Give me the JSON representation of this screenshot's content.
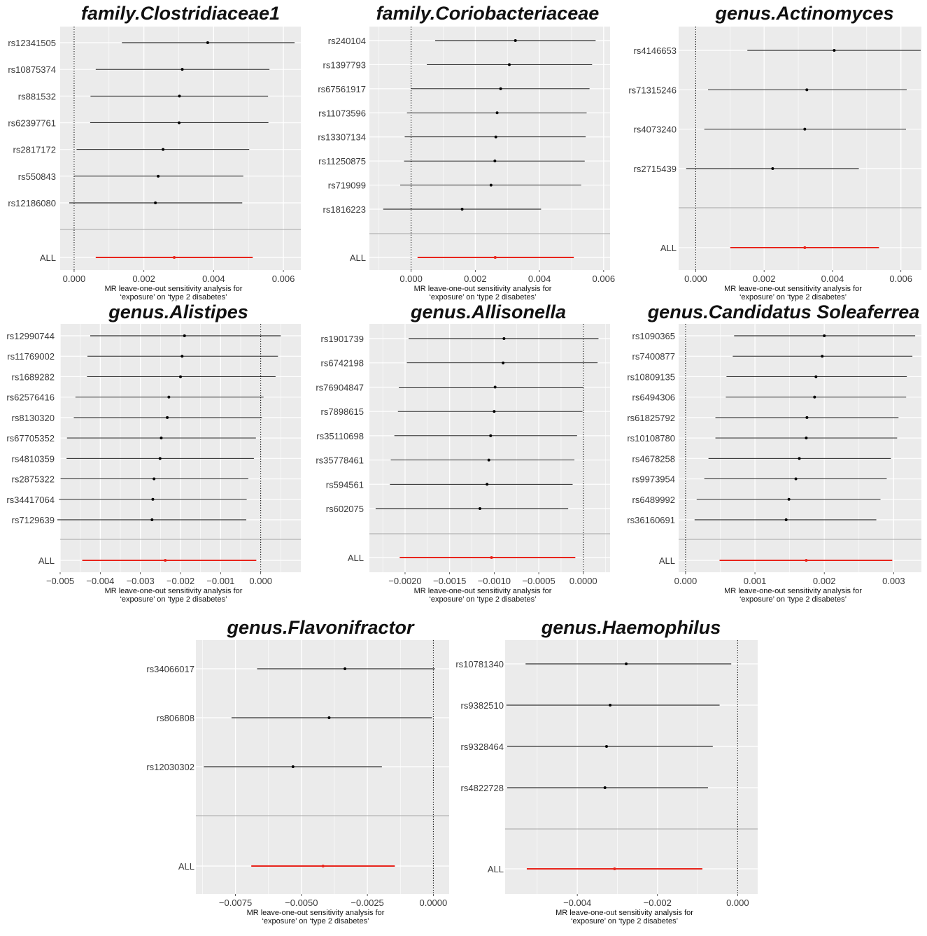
{
  "figure": {
    "colors": {
      "panel_background": "#ebebeb",
      "grid": "#ffffff",
      "estimate": "#000000",
      "overall": "#e8251c",
      "separator": "#a6a6a6",
      "null_line": "#000000"
    },
    "xlabel_line1": "MR leave-one-out sensitivity analysis for",
    "xlabel_line2": "‘exposure’ on  ‘type 2 disabetes’"
  },
  "chart_data": [
    {
      "type": "forest",
      "title": "family.Clostridiaceae1",
      "xlim": [
        -0.0004,
        0.0065
      ],
      "xticks": [
        0,
        0.002,
        0.004,
        0.006
      ],
      "xtick_labels": [
        "0.000",
        "0.002",
        "0.004",
        "0.006"
      ],
      "snps": [
        {
          "label": "rs12341505",
          "estimate": 0.00383,
          "lower": 0.00137,
          "upper": 0.00632
        },
        {
          "label": "rs10875374",
          "estimate": 0.0031,
          "lower": 0.00062,
          "upper": 0.0056
        },
        {
          "label": "rs881532",
          "estimate": 0.00302,
          "lower": 0.00047,
          "upper": 0.00556
        },
        {
          "label": "rs62397761",
          "estimate": 0.00301,
          "lower": 0.00046,
          "upper": 0.00557
        },
        {
          "label": "rs2817172",
          "estimate": 0.00255,
          "lower": 7e-05,
          "upper": 0.00502
        },
        {
          "label": "rs550843",
          "estimate": 0.00241,
          "lower": -1e-05,
          "upper": 0.00485
        },
        {
          "label": "rs12186080",
          "estimate": 0.00233,
          "lower": -0.00014,
          "upper": 0.00482
        }
      ],
      "overall": {
        "label": "ALL",
        "estimate": 0.00287,
        "lower": 0.00062,
        "upper": 0.00512
      }
    },
    {
      "type": "forest",
      "title": "family.Coriobacteriaceae",
      "xlim": [
        -0.0013,
        0.0062
      ],
      "xticks": [
        0,
        0.002,
        0.004,
        0.006
      ],
      "xtick_labels": [
        "0.000",
        "0.002",
        "0.004",
        "0.006"
      ],
      "snps": [
        {
          "label": "rs240104",
          "estimate": 0.00325,
          "lower": 0.00075,
          "upper": 0.00575
        },
        {
          "label": "rs1397793",
          "estimate": 0.00306,
          "lower": 0.00049,
          "upper": 0.00564
        },
        {
          "label": "rs67561917",
          "estimate": 0.00279,
          "lower": 0.0,
          "upper": 0.00556
        },
        {
          "label": "rs11073596",
          "estimate": 0.00268,
          "lower": -0.00013,
          "upper": 0.00547
        },
        {
          "label": "rs13307134",
          "estimate": 0.00264,
          "lower": -0.0002,
          "upper": 0.00544
        },
        {
          "label": "rs11250875",
          "estimate": 0.00261,
          "lower": -0.00022,
          "upper": 0.00541
        },
        {
          "label": "rs719099",
          "estimate": 0.00249,
          "lower": -0.00034,
          "upper": 0.0053
        },
        {
          "label": "rs1816223",
          "estimate": 0.00159,
          "lower": -0.00087,
          "upper": 0.00405
        }
      ],
      "overall": {
        "label": "ALL",
        "estimate": 0.00262,
        "lower": 0.0002,
        "upper": 0.00507
      }
    },
    {
      "type": "forest",
      "title": "genus.Actinomyces",
      "xlim": [
        -0.0005,
        0.0066
      ],
      "xticks": [
        0,
        0.002,
        0.004,
        0.006
      ],
      "xtick_labels": [
        "0.000",
        "0.002",
        "0.004",
        "0.006"
      ],
      "snps": [
        {
          "label": "rs4146653",
          "estimate": 0.00405,
          "lower": 0.00151,
          "upper": 0.00658
        },
        {
          "label": "rs71315246",
          "estimate": 0.00325,
          "lower": 0.00036,
          "upper": 0.00617
        },
        {
          "label": "rs4073240",
          "estimate": 0.00319,
          "lower": 0.00025,
          "upper": 0.00615
        },
        {
          "label": "rs2715439",
          "estimate": 0.00225,
          "lower": -0.00028,
          "upper": 0.00477
        }
      ],
      "overall": {
        "label": "ALL",
        "estimate": 0.00319,
        "lower": 0.00101,
        "upper": 0.00536
      }
    },
    {
      "type": "forest",
      "title": "genus.Alistipes",
      "xlim": [
        -0.005,
        0.001
      ],
      "xticks": [
        -0.005,
        -0.004,
        -0.003,
        -0.002,
        -0.001,
        0
      ],
      "xtick_labels": [
        "−0.005",
        "−0.004",
        "−0.003",
        "−0.002",
        "−0.001",
        "0.000"
      ],
      "snps": [
        {
          "label": "rs12990744",
          "estimate": -0.0019,
          "lower": -0.00425,
          "upper": 0.0005
        },
        {
          "label": "rs11769002",
          "estimate": -0.00196,
          "lower": -0.00432,
          "upper": 0.00043
        },
        {
          "label": "rs1689282",
          "estimate": -0.002,
          "lower": -0.00433,
          "upper": 0.00037
        },
        {
          "label": "rs62576416",
          "estimate": -0.00229,
          "lower": -0.00462,
          "upper": 7e-05
        },
        {
          "label": "rs8130320",
          "estimate": -0.00233,
          "lower": -0.00466,
          "upper": 3e-05
        },
        {
          "label": "rs67705352",
          "estimate": -0.00248,
          "lower": -0.00483,
          "upper": -0.00012
        },
        {
          "label": "rs4810359",
          "estimate": -0.00251,
          "lower": -0.00484,
          "upper": -0.00017
        },
        {
          "label": "rs2875322",
          "estimate": -0.00266,
          "lower": -0.00499,
          "upper": -0.00031
        },
        {
          "label": "rs34417064",
          "estimate": -0.00269,
          "lower": -0.00503,
          "upper": -0.00035
        },
        {
          "label": "rs7129639",
          "estimate": -0.00271,
          "lower": -0.00507,
          "upper": -0.00036
        }
      ],
      "overall": {
        "label": "ALL",
        "estimate": -0.00238,
        "lower": -0.00445,
        "upper": -0.00011
      }
    },
    {
      "type": "forest",
      "title": "genus.Allisonella",
      "xlim": [
        -0.0024,
        0.0003
      ],
      "xticks": [
        -0.002,
        -0.0015,
        -0.001,
        -0.0005,
        0
      ],
      "xtick_labels": [
        "−0.0020",
        "−0.0015",
        "−0.0010",
        "−0.0005",
        "0.0000"
      ],
      "snps": [
        {
          "label": "rs1901739",
          "estimate": -0.00089,
          "lower": -0.00196,
          "upper": 0.00017
        },
        {
          "label": "rs6742198",
          "estimate": -0.0009,
          "lower": -0.00198,
          "upper": 0.00016
        },
        {
          "label": "rs76904847",
          "estimate": -0.00099,
          "lower": -0.00207,
          "upper": 0.0
        },
        {
          "label": "rs7898615",
          "estimate": -0.001,
          "lower": -0.00208,
          "upper": -1e-05
        },
        {
          "label": "rs35110698",
          "estimate": -0.00104,
          "lower": -0.00212,
          "upper": -7e-05
        },
        {
          "label": "rs35778461",
          "estimate": -0.00106,
          "lower": -0.00216,
          "upper": -0.0001
        },
        {
          "label": "rs594561",
          "estimate": -0.00108,
          "lower": -0.00217,
          "upper": -0.00012
        },
        {
          "label": "rs602075",
          "estimate": -0.00116,
          "lower": -0.00233,
          "upper": -0.00017
        }
      ],
      "overall": {
        "label": "ALL",
        "estimate": -0.00103,
        "lower": -0.00206,
        "upper": -9e-05
      }
    },
    {
      "type": "forest",
      "title": "genus.Candidatus Soleaferrea",
      "xlim": [
        -0.0001,
        0.0034
      ],
      "xticks": [
        0,
        0.001,
        0.002,
        0.003
      ],
      "xtick_labels": [
        "0.000",
        "0.001",
        "0.002",
        "0.003"
      ],
      "snps": [
        {
          "label": "rs1090365",
          "estimate": 0.002,
          "lower": 0.0007,
          "upper": 0.00331
        },
        {
          "label": "rs7400877",
          "estimate": 0.00197,
          "lower": 0.00068,
          "upper": 0.00327
        },
        {
          "label": "rs10809135",
          "estimate": 0.00188,
          "lower": 0.00059,
          "upper": 0.00319
        },
        {
          "label": "rs6494306",
          "estimate": 0.00186,
          "lower": 0.00058,
          "upper": 0.00318
        },
        {
          "label": "rs61825792",
          "estimate": 0.00175,
          "lower": 0.00043,
          "upper": 0.00307
        },
        {
          "label": "rs10108780",
          "estimate": 0.00174,
          "lower": 0.00043,
          "upper": 0.00305
        },
        {
          "label": "rs4678258",
          "estimate": 0.00164,
          "lower": 0.00033,
          "upper": 0.00296
        },
        {
          "label": "rs9973954",
          "estimate": 0.00159,
          "lower": 0.00027,
          "upper": 0.0029
        },
        {
          "label": "rs6489992",
          "estimate": 0.00149,
          "lower": 0.00016,
          "upper": 0.00281
        },
        {
          "label": "rs36160691",
          "estimate": 0.00145,
          "lower": 0.00013,
          "upper": 0.00275
        }
      ],
      "overall": {
        "label": "ALL",
        "estimate": 0.00174,
        "lower": 0.00049,
        "upper": 0.00298
      }
    },
    {
      "type": "forest",
      "title": "genus.Flavonifractor",
      "xlim": [
        -0.009,
        0.0006
      ],
      "xticks": [
        -0.0075,
        -0.005,
        -0.0025,
        0
      ],
      "xtick_labels": [
        "−0.0075",
        "−0.0050",
        "−0.0025",
        "0.0000"
      ],
      "snps": [
        {
          "label": "rs34066017",
          "estimate": -0.00335,
          "lower": -0.00668,
          "upper": 6e-05
        },
        {
          "label": "rs806808",
          "estimate": -0.00395,
          "lower": -0.00765,
          "upper": -5e-05
        },
        {
          "label": "rs12030302",
          "estimate": -0.00532,
          "lower": -0.0087,
          "upper": -0.00195
        }
      ],
      "overall": {
        "label": "ALL",
        "estimate": -0.00418,
        "lower": -0.0069,
        "upper": -0.00146
      }
    },
    {
      "type": "forest",
      "title": "genus.Haemophilus",
      "xlim": [
        -0.0058,
        0.0005
      ],
      "xticks": [
        -0.004,
        -0.002,
        0
      ],
      "xtick_labels": [
        "−0.004",
        "−0.002",
        "0.000"
      ],
      "snps": [
        {
          "label": "rs10781340",
          "estimate": -0.00278,
          "lower": -0.00529,
          "upper": -0.00016
        },
        {
          "label": "rs9382510",
          "estimate": -0.00318,
          "lower": -0.00577,
          "upper": -0.00045
        },
        {
          "label": "rs9328464",
          "estimate": -0.00327,
          "lower": -0.00575,
          "upper": -0.00062
        },
        {
          "label": "rs4822728",
          "estimate": -0.00331,
          "lower": -0.00575,
          "upper": -0.00074
        }
      ],
      "overall": {
        "label": "ALL",
        "estimate": -0.00307,
        "lower": -0.00526,
        "upper": -0.00088
      }
    }
  ]
}
